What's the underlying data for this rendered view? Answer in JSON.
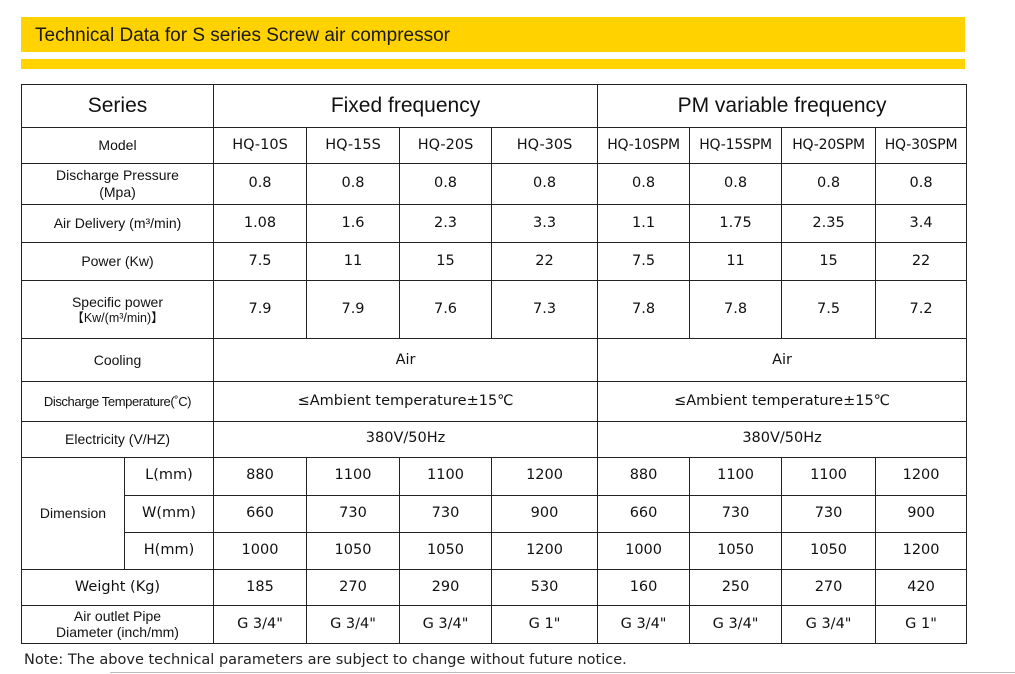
{
  "title": "Technical Data for S series Screw air compressor",
  "colors": {
    "accent": "#ffd200",
    "border": "#222222"
  },
  "header": {
    "series_label": "Series",
    "fixed_label": "Fixed frequency",
    "pm_label": "PM variable frequency"
  },
  "rows": {
    "model_label": "Model",
    "models": [
      "HQ-10S",
      "HQ-15S",
      "HQ-20S",
      "HQ-30S",
      "HQ-10SPM",
      "HQ-15SPM",
      "HQ-20SPM",
      "HQ-30SPM"
    ],
    "pressure_label_1": "Discharge Pressure",
    "pressure_label_2": "(Mpa)",
    "pressure": [
      "0.8",
      "0.8",
      "0.8",
      "0.8",
      "0.8",
      "0.8",
      "0.8",
      "0.8"
    ],
    "air_label": "Air Delivery  (m³/min)",
    "air": [
      "1.08",
      "1.6",
      "2.3",
      "3.3",
      "1.1",
      "1.75",
      "2.35",
      "3.4"
    ],
    "power_label": "Power  (Kw)",
    "power": [
      "7.5",
      "11",
      "15",
      "22",
      "7.5",
      "11",
      "15",
      "22"
    ],
    "specific_label_1": "Specific power",
    "specific_label_2": "【Kw/(m³/min)】",
    "specific": [
      "7.9",
      "7.9",
      "7.6",
      "7.3",
      "7.8",
      "7.8",
      "7.5",
      "7.2"
    ],
    "cooling_label": "Cooling",
    "cooling_fixed": "Air",
    "cooling_pm": "Air",
    "temp_label": "Discharge Temperature(˚C)",
    "temp_fixed": "≤Ambient temperature±15℃",
    "temp_pm": "≤Ambient temperature±15℃",
    "elec_label": "Electricity (V/HZ)",
    "elec_fixed": "380V/50Hz",
    "elec_pm": "380V/50Hz",
    "dimension_label": "Dimension",
    "l_label": "L(mm)",
    "l": [
      "880",
      "1100",
      "1100",
      "1200",
      "880",
      "1100",
      "1100",
      "1200"
    ],
    "w_label": "W(mm)",
    "w": [
      "660",
      "730",
      "730",
      "900",
      "660",
      "730",
      "730",
      "900"
    ],
    "h_label": "H(mm)",
    "h": [
      "1000",
      "1050",
      "1050",
      "1200",
      "1000",
      "1050",
      "1050",
      "1200"
    ],
    "weight_label": "Weight (Kg)",
    "weight": [
      "185",
      "270",
      "290",
      "530",
      "160",
      "250",
      "270",
      "420"
    ],
    "outlet_label_1": "Air outlet Pipe",
    "outlet_label_2": "Diameter (inch/mm)",
    "outlet": [
      "G 3/4\"",
      "G 3/4\"",
      "G 3/4\"",
      "G 1\"",
      "G 3/4\"",
      "G 3/4\"",
      "G 3/4\"",
      "G 1\""
    ]
  },
  "note": "Note: The above technical parameters are subject to change without future notice."
}
